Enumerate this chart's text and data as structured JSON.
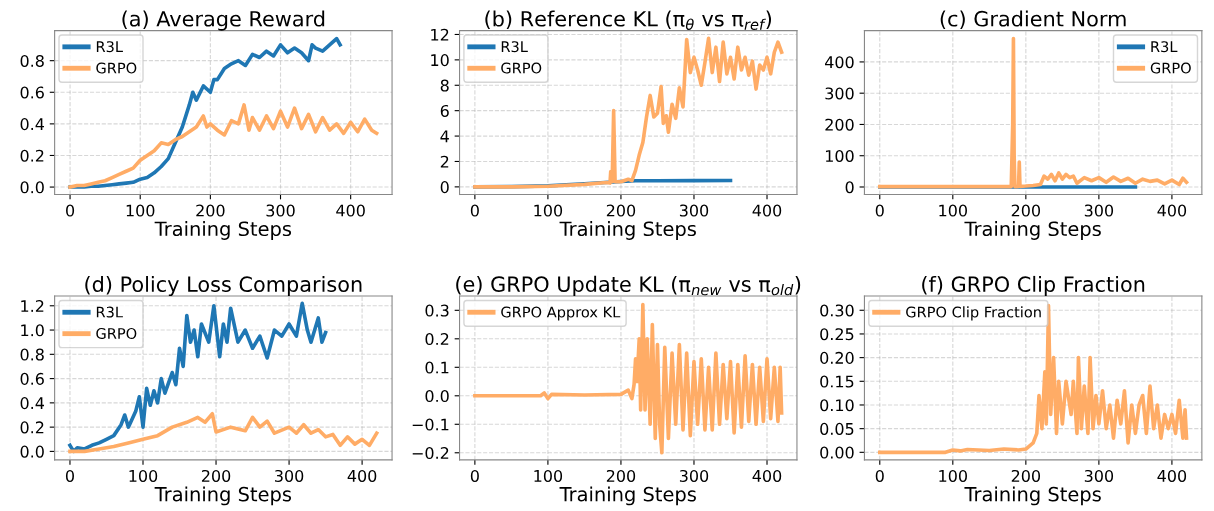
{
  "chart_data": [
    {
      "type": "line",
      "title": "(a) Average Reward",
      "xlabel": "Training Steps",
      "grid": true,
      "legend": "top left",
      "xlim": [
        -22,
        459
      ],
      "ylim": [
        -0.047,
        0.99
      ],
      "xticks": [
        0,
        100,
        200,
        300,
        400
      ],
      "yticks": [
        {
          "value": 0,
          "label": "0.0"
        },
        {
          "value": 0.2,
          "label": "0.2"
        },
        {
          "value": 0.4,
          "label": "0.4"
        },
        {
          "value": 0.6,
          "label": "0.6"
        },
        {
          "value": 0.8,
          "label": "0.8"
        }
      ],
      "series": [
        {
          "name": "R3L",
          "color": "#1f77b4",
          "x": [
            0,
            10,
            20,
            30,
            40,
            50,
            60,
            70,
            80,
            90,
            100,
            110,
            120,
            130,
            140,
            150,
            160,
            170,
            175,
            180,
            190,
            200,
            205,
            210,
            220,
            230,
            240,
            250,
            260,
            270,
            280,
            290,
            300,
            310,
            320,
            330,
            340,
            345,
            350,
            360,
            370,
            380,
            385
          ],
          "values": [
            0,
            0,
            0,
            0.005,
            0.005,
            0.01,
            0.015,
            0.02,
            0.025,
            0.03,
            0.05,
            0.06,
            0.09,
            0.13,
            0.18,
            0.28,
            0.38,
            0.52,
            0.6,
            0.55,
            0.64,
            0.6,
            0.68,
            0.68,
            0.75,
            0.78,
            0.8,
            0.77,
            0.84,
            0.82,
            0.86,
            0.83,
            0.9,
            0.85,
            0.88,
            0.85,
            0.8,
            0.9,
            0.88,
            0.86,
            0.9,
            0.94,
            0.9
          ]
        },
        {
          "name": "GRPO",
          "color": "#ffac66",
          "x": [
            0,
            10,
            20,
            30,
            40,
            50,
            60,
            70,
            80,
            90,
            100,
            110,
            120,
            130,
            140,
            150,
            160,
            170,
            180,
            190,
            195,
            200,
            210,
            220,
            230,
            240,
            248,
            255,
            260,
            270,
            280,
            290,
            300,
            310,
            320,
            330,
            340,
            350,
            360,
            370,
            380,
            390,
            400,
            410,
            420,
            430,
            437
          ],
          "values": [
            0,
            0.01,
            0.01,
            0.02,
            0.03,
            0.04,
            0.06,
            0.08,
            0.1,
            0.12,
            0.17,
            0.2,
            0.23,
            0.28,
            0.27,
            0.3,
            0.32,
            0.35,
            0.38,
            0.45,
            0.38,
            0.4,
            0.36,
            0.33,
            0.42,
            0.4,
            0.52,
            0.36,
            0.44,
            0.36,
            0.45,
            0.37,
            0.48,
            0.38,
            0.5,
            0.37,
            0.46,
            0.35,
            0.44,
            0.36,
            0.4,
            0.34,
            0.41,
            0.35,
            0.43,
            0.36,
            0.34
          ]
        }
      ]
    },
    {
      "type": "line",
      "title": "(b) Reference KL (π$_{θ}$ vs π$_{ref}$)",
      "xlabel": "Training Steps",
      "grid": true,
      "legend": "top left",
      "xlim": [
        -21,
        441
      ],
      "ylim": [
        -0.6,
        12.3
      ],
      "xticks": [
        0,
        100,
        200,
        300,
        400
      ],
      "yticks": [
        0,
        2,
        4,
        6,
        8,
        10,
        12
      ],
      "series": [
        {
          "name": "R3L",
          "color": "#1f77b4",
          "x": [
            0,
            50,
            100,
            150,
            200,
            220,
            250,
            300,
            350
          ],
          "values": [
            0,
            0.02,
            0.08,
            0.25,
            0.42,
            0.48,
            0.48,
            0.49,
            0.5
          ]
        },
        {
          "name": "GRPO",
          "color": "#ffac66",
          "x": [
            0,
            50,
            100,
            150,
            180,
            185,
            186,
            188,
            190,
            192,
            200,
            210,
            215,
            220,
            225,
            230,
            235,
            240,
            245,
            250,
            255,
            258,
            262,
            265,
            270,
            275,
            280,
            285,
            290,
            295,
            300,
            305,
            310,
            315,
            320,
            325,
            330,
            335,
            340,
            345,
            350,
            355,
            360,
            365,
            370,
            375,
            380,
            385,
            390,
            395,
            400,
            405,
            410,
            415,
            420
          ],
          "values": [
            0,
            0,
            0.05,
            0.2,
            0.35,
            0.3,
            1.2,
            0.4,
            6.0,
            0.4,
            0.4,
            0.6,
            0.5,
            1.3,
            2.5,
            3.5,
            5.5,
            7.2,
            5.5,
            5.8,
            7.9,
            5.0,
            5.6,
            4.3,
            6.5,
            5.4,
            7.8,
            6.3,
            11.6,
            9.0,
            10.2,
            9.2,
            8.0,
            9.8,
            11.7,
            9.0,
            11.0,
            8.3,
            11.4,
            8.9,
            10.2,
            8.5,
            11.0,
            9.2,
            10.2,
            8.8,
            9.9,
            7.7,
            9.6,
            9.2,
            10.2,
            8.9,
            10.6,
            11.4,
            10.6
          ]
        }
      ]
    },
    {
      "type": "line",
      "title": "(c) Gradient Norm",
      "xlabel": "Training Steps",
      "grid": true,
      "legend": "top right",
      "xlim": [
        -21,
        441
      ],
      "ylim": [
        -24,
        500
      ],
      "xticks": [
        0,
        100,
        200,
        300,
        400
      ],
      "yticks": [
        0,
        100,
        200,
        300,
        400
      ],
      "series": [
        {
          "name": "R3L",
          "color": "#1f77b4",
          "x": [
            0,
            100,
            200,
            350
          ],
          "values": [
            0,
            0,
            0,
            0
          ]
        },
        {
          "name": "GRPO",
          "color": "#ffac66",
          "x": [
            0,
            100,
            180,
            182,
            183,
            184,
            185,
            190,
            191,
            192,
            200,
            210,
            220,
            225,
            230,
            235,
            240,
            245,
            250,
            255,
            260,
            265,
            270,
            280,
            290,
            300,
            310,
            320,
            330,
            340,
            350,
            360,
            370,
            380,
            390,
            400,
            410,
            415,
            420
          ],
          "values": [
            1,
            1,
            1,
            200,
            475,
            100,
            1,
            2,
            80,
            2,
            3,
            5,
            8,
            35,
            25,
            40,
            20,
            45,
            25,
            40,
            30,
            35,
            12,
            30,
            20,
            30,
            15,
            32,
            18,
            28,
            12,
            25,
            18,
            22,
            10,
            22,
            8,
            28,
            15
          ]
        }
      ]
    },
    {
      "type": "line",
      "title": "(d) Policy Loss Comparison",
      "xlabel": "Training Steps",
      "grid": true,
      "legend": "top left",
      "xlim": [
        -21,
        441
      ],
      "ylim": [
        -0.07,
        1.28
      ],
      "xticks": [
        0,
        100,
        200,
        300,
        400
      ],
      "yticks": [
        {
          "value": 0,
          "label": "0.0"
        },
        {
          "value": 0.2,
          "label": "0.2"
        },
        {
          "value": 0.4,
          "label": "0.4"
        },
        {
          "value": 0.6,
          "label": "0.6"
        },
        {
          "value": 0.8,
          "label": "0.8"
        },
        {
          "value": 1.0,
          "label": "1.0"
        },
        {
          "value": 1.2,
          "label": "1.2"
        }
      ],
      "series": [
        {
          "name": "R3L",
          "color": "#1f77b4",
          "x": [
            0,
            5,
            10,
            20,
            30,
            40,
            50,
            60,
            70,
            75,
            80,
            90,
            95,
            100,
            105,
            110,
            115,
            120,
            125,
            130,
            140,
            145,
            150,
            155,
            160,
            165,
            170,
            175,
            180,
            190,
            197,
            205,
            210,
            215,
            220,
            230,
            240,
            250,
            260,
            270,
            280,
            290,
            300,
            310,
            318,
            325,
            330,
            340,
            345,
            350
          ],
          "values": [
            0.05,
            0,
            0.03,
            0.02,
            0.05,
            0.07,
            0.1,
            0.13,
            0.22,
            0.3,
            0.2,
            0.33,
            0.45,
            0.2,
            0.52,
            0.38,
            0.5,
            0.4,
            0.6,
            0.48,
            0.65,
            0.55,
            0.85,
            0.7,
            1.12,
            0.9,
            1.0,
            0.78,
            1.05,
            0.9,
            1.2,
            0.78,
            1.05,
            0.9,
            1.18,
            0.9,
            1.0,
            0.85,
            0.95,
            0.77,
            1.0,
            0.95,
            1.05,
            0.95,
            1.22,
            1.0,
            0.9,
            1.1,
            0.9,
            0.98
          ]
        },
        {
          "name": "GRPO",
          "color": "#ffac66",
          "x": [
            0,
            20,
            40,
            60,
            80,
            100,
            120,
            140,
            160,
            175,
            185,
            195,
            200,
            220,
            240,
            250,
            260,
            270,
            280,
            300,
            310,
            320,
            330,
            340,
            350,
            360,
            370,
            380,
            390,
            400,
            410,
            420
          ],
          "values": [
            0,
            0,
            0.02,
            0.04,
            0.07,
            0.1,
            0.13,
            0.2,
            0.24,
            0.28,
            0.24,
            0.31,
            0.16,
            0.2,
            0.17,
            0.28,
            0.2,
            0.25,
            0.15,
            0.2,
            0.15,
            0.22,
            0.15,
            0.18,
            0.12,
            0.14,
            0.05,
            0.12,
            0.06,
            0.1,
            0.05,
            0.15
          ]
        }
      ]
    },
    {
      "type": "line",
      "title": "(e) GRPO Update KL (π$_{new}$ vs π$_{old}$)",
      "xlabel": "Training Steps",
      "grid": true,
      "legend": "top left",
      "xlim": [
        -21,
        441
      ],
      "ylim": [
        -0.225,
        0.35
      ],
      "xticks": [
        0,
        100,
        200,
        300,
        400
      ],
      "yticks": [
        {
          "value": -0.2,
          "label": "−0.2"
        },
        {
          "value": -0.1,
          "label": "−0.1"
        },
        {
          "value": 0,
          "label": "0.0"
        },
        {
          "value": 0.1,
          "label": "0.1"
        },
        {
          "value": 0.2,
          "label": "0.2"
        },
        {
          "value": 0.3,
          "label": "0.3"
        }
      ],
      "series": [
        {
          "name": "GRPO Approx KL",
          "color": "#ffac66",
          "x": [
            0,
            90,
            95,
            100,
            105,
            150,
            200,
            210,
            215,
            218,
            220,
            222,
            225,
            227,
            230,
            233,
            236,
            240,
            243,
            247,
            250,
            253,
            256,
            260,
            265,
            270,
            275,
            280,
            285,
            290,
            295,
            300,
            305,
            310,
            315,
            320,
            325,
            330,
            335,
            340,
            345,
            350,
            355,
            360,
            365,
            370,
            375,
            380,
            385,
            390,
            395,
            400,
            405,
            410,
            415,
            418,
            420
          ],
          "values": [
            0,
            0,
            0.01,
            -0.01,
            0.005,
            0.003,
            0.005,
            0.02,
            -0.01,
            0.04,
            0.13,
            0.05,
            0.2,
            -0.05,
            0.32,
            -0.05,
            0.2,
            -0.1,
            0.25,
            -0.15,
            0.18,
            -0.1,
            -0.2,
            0.17,
            -0.15,
            0.15,
            -0.1,
            0.18,
            -0.12,
            0.15,
            -0.14,
            0.12,
            -0.1,
            0.13,
            -0.12,
            0.1,
            -0.12,
            0.15,
            -0.1,
            0.11,
            -0.08,
            0.12,
            -0.13,
            0.11,
            -0.11,
            0.14,
            -0.09,
            0.11,
            -0.1,
            0.1,
            -0.09,
            0.13,
            -0.08,
            0.1,
            -0.09,
            0.1,
            -0.06
          ]
        }
      ]
    },
    {
      "type": "line",
      "title": "(f) GRPO Clip Fraction",
      "xlabel": "Training Steps",
      "grid": true,
      "legend": "top left",
      "xlim": [
        -21,
        441
      ],
      "ylim": [
        -0.016,
        0.33
      ],
      "xticks": [
        0,
        100,
        200,
        300,
        400
      ],
      "yticks": [
        {
          "value": 0,
          "label": "0.00"
        },
        {
          "value": 0.05,
          "label": "0.05"
        },
        {
          "value": 0.1,
          "label": "0.10"
        },
        {
          "value": 0.15,
          "label": "0.15"
        },
        {
          "value": 0.2,
          "label": "0.20"
        },
        {
          "value": 0.25,
          "label": "0.25"
        },
        {
          "value": 0.3,
          "label": "0.30"
        }
      ],
      "series": [
        {
          "name": "GRPO Clip Fraction",
          "color": "#ffac66",
          "x": [
            0,
            90,
            100,
            110,
            120,
            150,
            170,
            190,
            200,
            210,
            215,
            218,
            222,
            226,
            228,
            231,
            234,
            238,
            242,
            245,
            250,
            255,
            258,
            262,
            265,
            270,
            272,
            276,
            280,
            285,
            288,
            292,
            296,
            300,
            305,
            310,
            315,
            320,
            325,
            330,
            335,
            340,
            345,
            350,
            355,
            360,
            365,
            370,
            375,
            380,
            385,
            390,
            395,
            400,
            405,
            410,
            415,
            418,
            420
          ],
          "values": [
            0,
            0,
            0.005,
            0.003,
            0.006,
            0.004,
            0.007,
            0.005,
            0.007,
            0.02,
            0.04,
            0.12,
            0.05,
            0.17,
            0.06,
            0.31,
            0.08,
            0.2,
            0.04,
            0.15,
            0.06,
            0.15,
            0.12,
            0.08,
            0.15,
            0.04,
            0.2,
            0.05,
            0.14,
            0.04,
            0.2,
            0.05,
            0.12,
            0.06,
            0.13,
            0.05,
            0.1,
            0.03,
            0.11,
            0.06,
            0.13,
            0.02,
            0.1,
            0.04,
            0.1,
            0.12,
            0.04,
            0.14,
            0.05,
            0.1,
            0.03,
            0.08,
            0.05,
            0.08,
            0.04,
            0.11,
            0.03,
            0.09,
            0.03
          ]
        }
      ]
    }
  ]
}
